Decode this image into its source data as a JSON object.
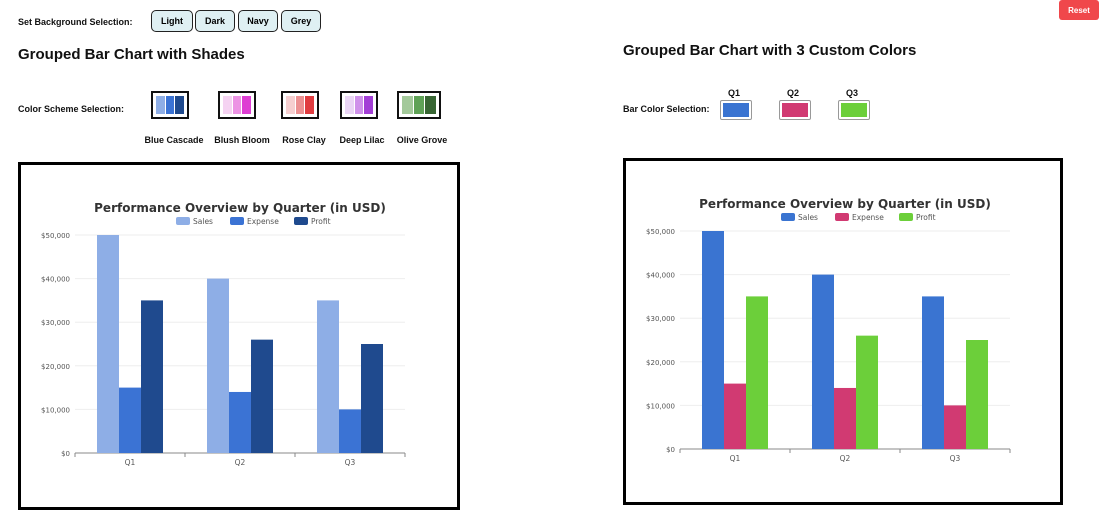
{
  "controls": {
    "bg_label": "Set Background Selection:",
    "bg_options": [
      "Light",
      "Dark",
      "Navy",
      "Grey"
    ],
    "reset": "Reset"
  },
  "left": {
    "heading": "Grouped Bar Chart with Shades",
    "scheme_label": "Color Scheme Selection:",
    "schemes": [
      {
        "name": "Blue Cascade",
        "colors": [
          "#8eaee6",
          "#3b73d4",
          "#1f4a8e"
        ]
      },
      {
        "name": "Blush Bloom",
        "colors": [
          "#f5d3f2",
          "#ec93e4",
          "#de3ed3"
        ]
      },
      {
        "name": "Rose Clay",
        "colors": [
          "#f6cfd0",
          "#ec9192",
          "#e03c40"
        ]
      },
      {
        "name": "Deep Lilac",
        "colors": [
          "#ead6f5",
          "#cf92ea",
          "#a33fd6"
        ]
      },
      {
        "name": "Olive Grove",
        "colors": [
          "#a3c99a",
          "#5fa256",
          "#386633"
        ]
      }
    ]
  },
  "right": {
    "heading": "Grouped Bar Chart with 3 Custom Colors",
    "color_label": "Bar Color Selection:",
    "pickers": [
      {
        "label": "Q1",
        "color": "#3a74d1"
      },
      {
        "label": "Q2",
        "color": "#d13a72"
      },
      {
        "label": "Q3",
        "color": "#6ccf3a"
      }
    ]
  },
  "chart_data": [
    {
      "type": "bar",
      "title": "Performance Overview by Quarter (in USD)",
      "categories": [
        "Q1",
        "Q2",
        "Q3"
      ],
      "series": [
        {
          "name": "Sales",
          "values": [
            50000,
            40000,
            35000
          ],
          "color": "#8eaee6"
        },
        {
          "name": "Expense",
          "values": [
            15000,
            14000,
            10000
          ],
          "color": "#3b73d4"
        },
        {
          "name": "Profit",
          "values": [
            35000,
            26000,
            25000
          ],
          "color": "#1f4a8e"
        }
      ],
      "ylim": [
        0,
        50000
      ],
      "yticks": [
        "$0",
        "$10,000",
        "$20,000",
        "$30,000",
        "$40,000",
        "$50,000"
      ],
      "legend": "top",
      "grid": true
    },
    {
      "type": "bar",
      "title": "Performance Overview by Quarter (in USD)",
      "categories": [
        "Q1",
        "Q2",
        "Q3"
      ],
      "series": [
        {
          "name": "Sales",
          "values": [
            50000,
            40000,
            35000
          ],
          "color": "#3a74d1"
        },
        {
          "name": "Expense",
          "values": [
            15000,
            14000,
            10000
          ],
          "color": "#d13a72"
        },
        {
          "name": "Profit",
          "values": [
            35000,
            26000,
            25000
          ],
          "color": "#6ccf3a"
        }
      ],
      "ylim": [
        0,
        50000
      ],
      "yticks": [
        "$0",
        "$10,000",
        "$20,000",
        "$30,000",
        "$40,000",
        "$50,000"
      ],
      "legend": "top",
      "grid": true
    }
  ]
}
